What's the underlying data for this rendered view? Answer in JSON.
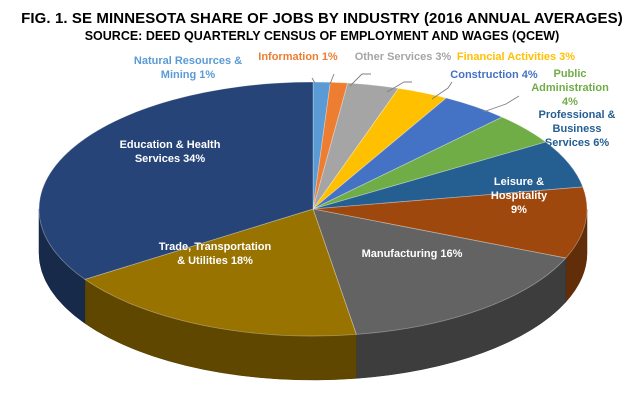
{
  "chart_data": {
    "type": "pie",
    "title": "FIG. 1. SE MINNESOTA SHARE OF JOBS BY INDUSTRY (2016 ANNUAL AVERAGES)",
    "subtitle": "SOURCE: DEED QUARTERLY CENSUS OF EMPLOYMENT AND WAGES (QCEW)",
    "three_d": true,
    "slices": [
      {
        "name": "Natural Resources & Mining",
        "value": 1,
        "label": [
          "Natural Resources &",
          "Mining 1%"
        ],
        "color": "#5B9BD5",
        "label_color": "#5B9BD5"
      },
      {
        "name": "Information",
        "value": 1,
        "label": [
          "Information 1%"
        ],
        "color": "#ED7D31",
        "label_color": "#ED7D31"
      },
      {
        "name": "Other Services",
        "value": 3,
        "label": [
          "Other Services 3%"
        ],
        "color": "#A5A5A5",
        "label_color": "#A5A5A5"
      },
      {
        "name": "Financial Activities",
        "value": 3,
        "label": [
          "Financial Activities 3%"
        ],
        "color": "#FFC000",
        "label_color": "#FFC000"
      },
      {
        "name": "Construction",
        "value": 4,
        "label": [
          "Construction 4%"
        ],
        "color": "#4472C4",
        "label_color": "#4472C4"
      },
      {
        "name": "Public Administration",
        "value": 4,
        "label": [
          "Public",
          "Administration",
          "4%"
        ],
        "color": "#70AD47",
        "label_color": "#70AD47"
      },
      {
        "name": "Professional & Business Services",
        "value": 6,
        "label": [
          "Professional &",
          "Business",
          "Services 6%"
        ],
        "color": "#255E91",
        "label_color": "#255E91"
      },
      {
        "name": "Leisure & Hospitality",
        "value": 9,
        "label": [
          "Leisure &",
          "Hospitality",
          "9%"
        ],
        "color": "#9E480E",
        "label_color": "#FFFFFF"
      },
      {
        "name": "Manufacturing",
        "value": 16,
        "label": [
          "Manufacturing 16%"
        ],
        "color": "#636363",
        "label_color": "#FFFFFF"
      },
      {
        "name": "Trade, Transportation & Utilities",
        "value": 18,
        "label": [
          "Trade, Transportation",
          "& Utilities 18%"
        ],
        "color": "#997300",
        "label_color": "#FFFFFF"
      },
      {
        "name": "Education & Health Services",
        "value": 34,
        "label": [
          "Education & Health",
          "Services 34%"
        ],
        "color": "#264478",
        "label_color": "#FFFFFF"
      }
    ]
  }
}
